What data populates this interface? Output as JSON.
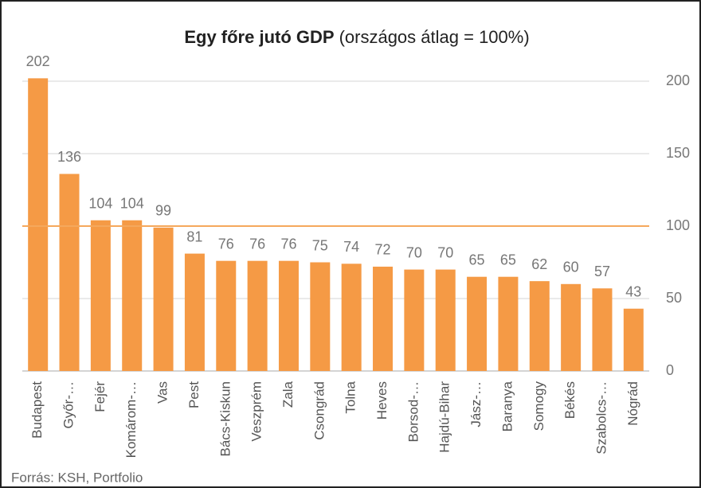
{
  "chart_data": {
    "type": "bar",
    "title": "Egy főre jutó GDP",
    "subtitle": "(országos átlag = 100%)",
    "categories": [
      "Budapest",
      "Győr-…",
      "Fejér",
      "Komárom-…",
      "Vas",
      "Pest",
      "Bács-Kiskun",
      "Veszprém",
      "Zala",
      "Csongrád",
      "Tolna",
      "Heves",
      "Borsod-…",
      "Hajdú-Bihar",
      "Jász-…",
      "Baranya",
      "Somogy",
      "Békés",
      "Szabolcs-…",
      "Nógrád"
    ],
    "values": [
      202,
      136,
      104,
      104,
      99,
      81,
      76,
      76,
      76,
      75,
      74,
      72,
      70,
      70,
      65,
      65,
      62,
      60,
      57,
      43
    ],
    "color": "#f59a45",
    "ylim": [
      0,
      200
    ],
    "yticks": [
      0,
      50,
      100,
      150,
      200
    ],
    "grid": true,
    "reference_line": {
      "value": 100,
      "color": "#f5a85c"
    },
    "source": "Forrás: KSH, Portfolio"
  }
}
